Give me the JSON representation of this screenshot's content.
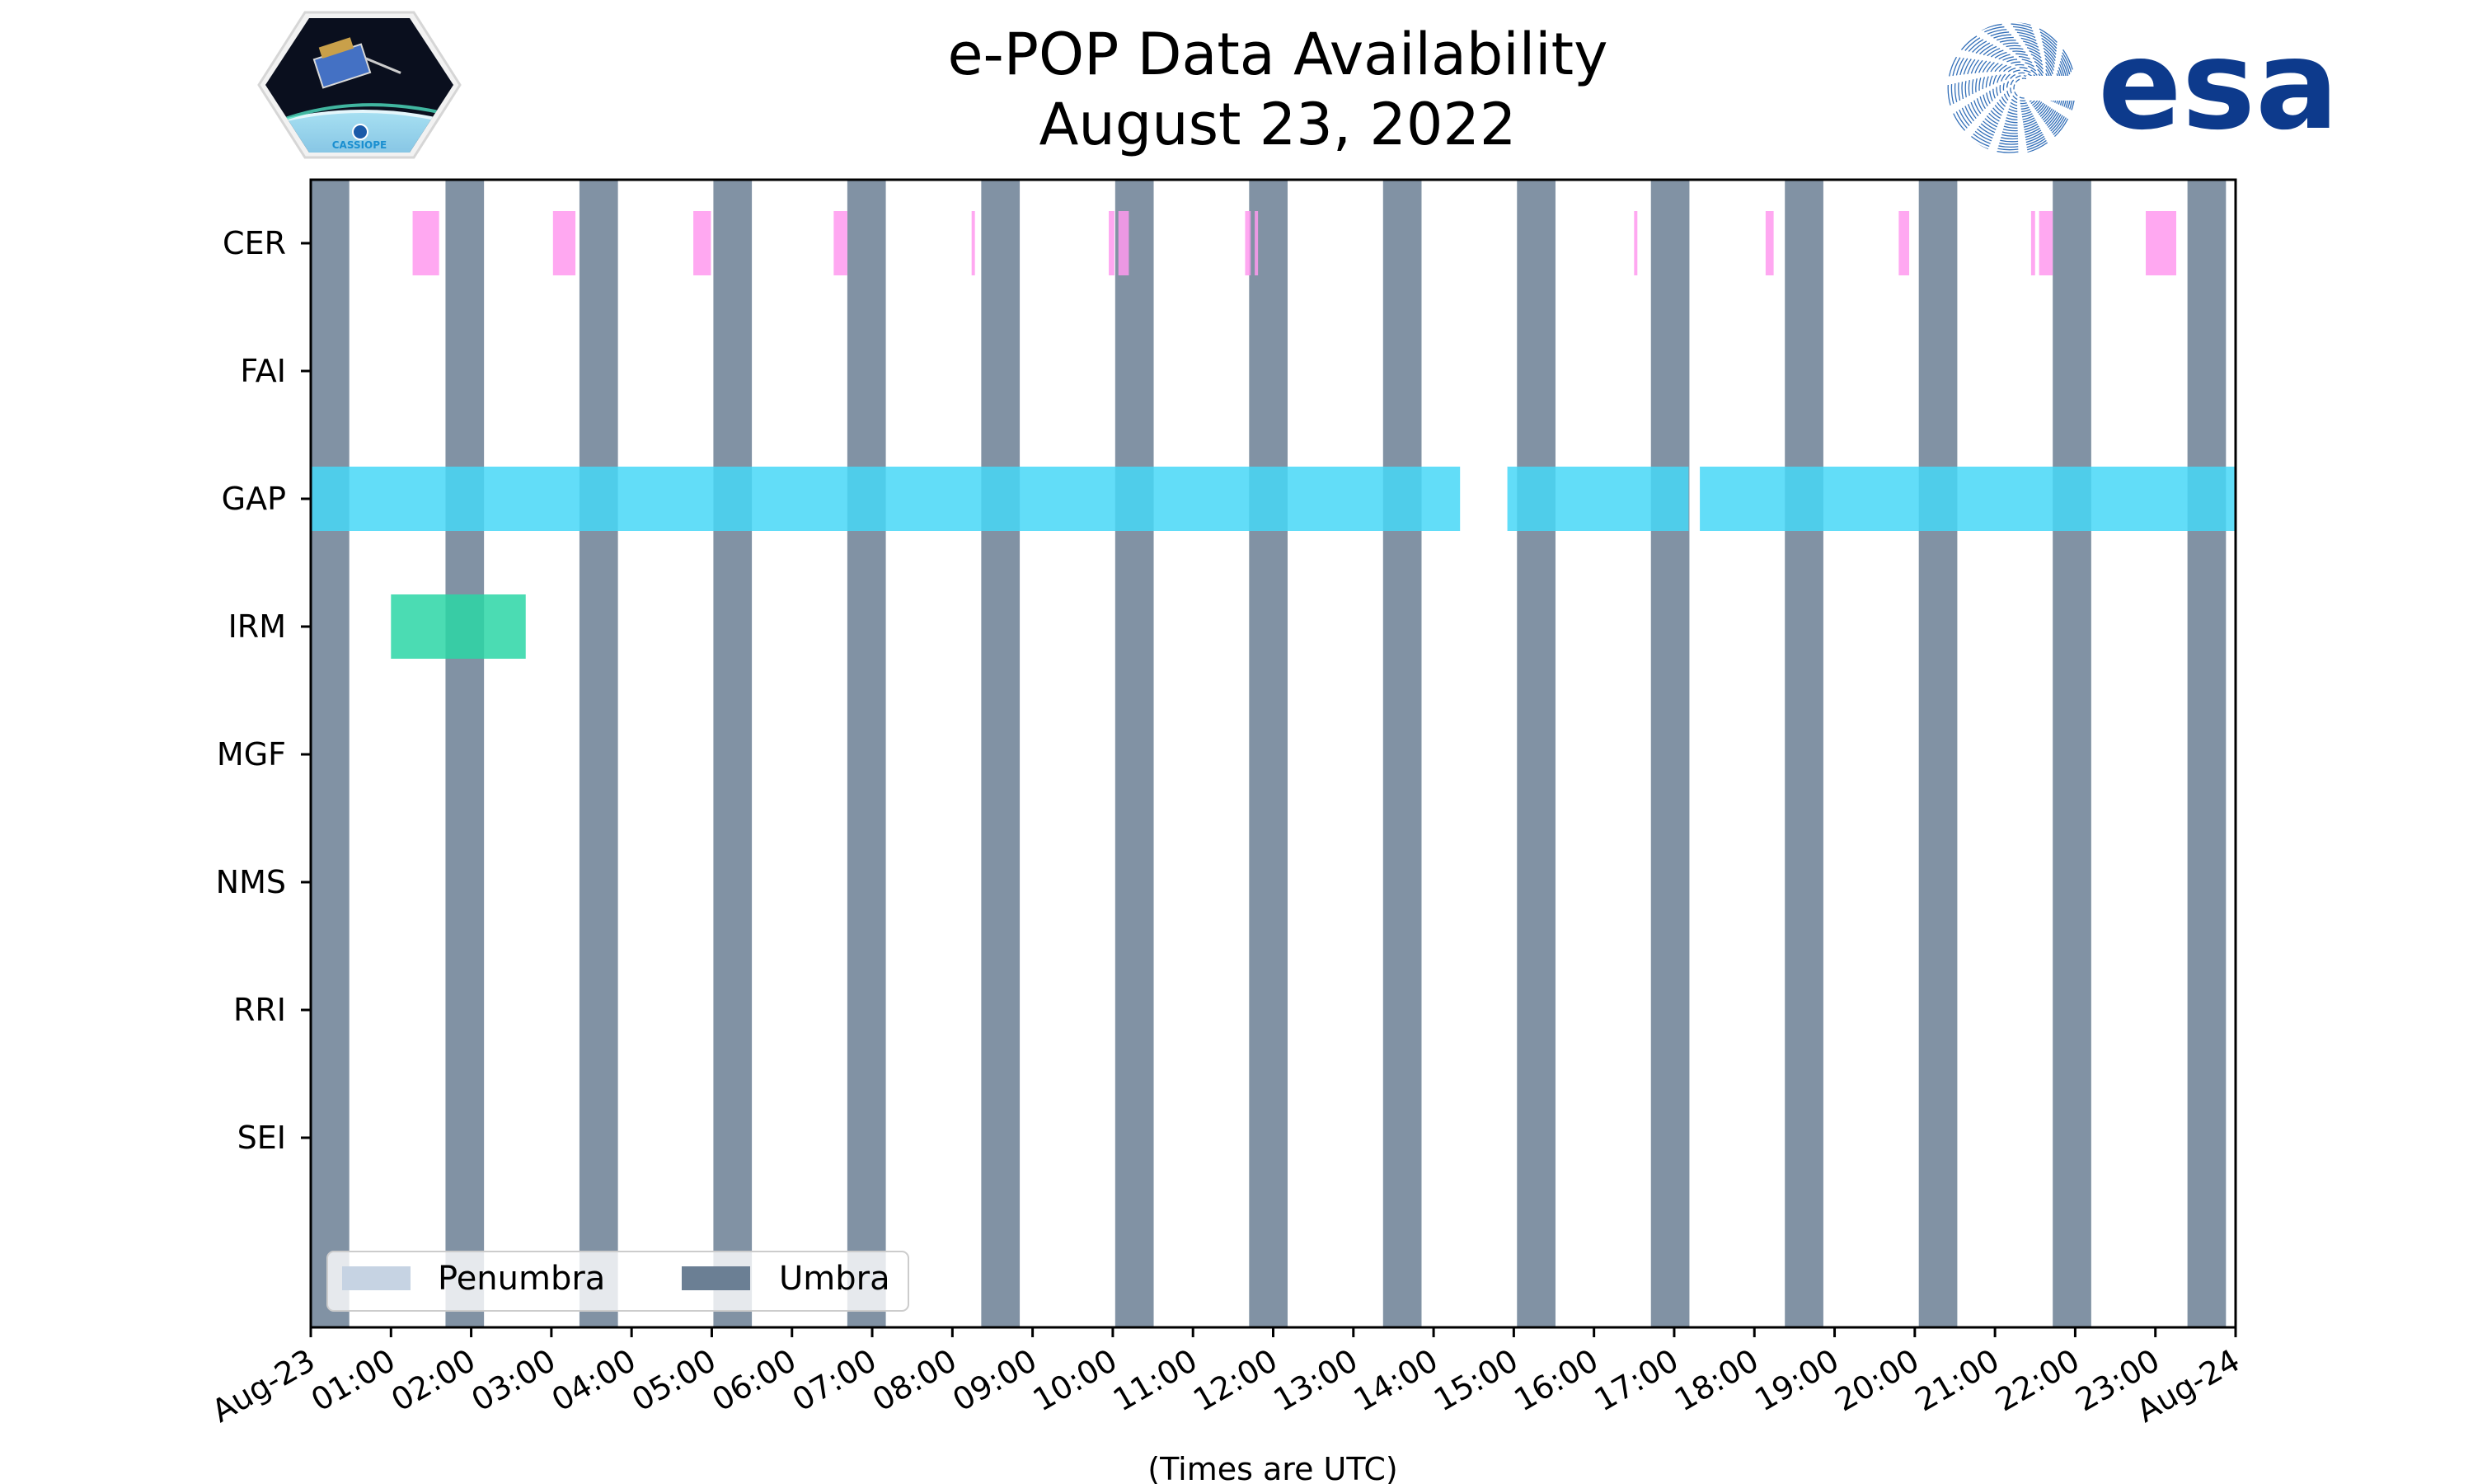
{
  "header": {
    "title": "e-POP Data Availability",
    "subtitle": "August 23, 2022"
  },
  "logos": {
    "left": {
      "icon": "cassiope-mission-patch",
      "text": "CASSIOPE"
    },
    "right": {
      "icon": "esa-logo",
      "text": "esa"
    }
  },
  "chart_data": {
    "type": "timeline",
    "title": "e-POP Data Availability",
    "subtitle": "August 23, 2022",
    "xlabel": "(Times are UTC)",
    "xlim_hours": [
      0,
      24
    ],
    "x_tick_hours": [
      0,
      1,
      2,
      3,
      4,
      5,
      6,
      7,
      8,
      9,
      10,
      11,
      12,
      13,
      14,
      15,
      16,
      17,
      18,
      19,
      20,
      21,
      22,
      23,
      24
    ],
    "x_tick_labels": [
      "Aug-23",
      "01:00",
      "02:00",
      "03:00",
      "04:00",
      "05:00",
      "06:00",
      "07:00",
      "08:00",
      "09:00",
      "10:00",
      "11:00",
      "12:00",
      "13:00",
      "14:00",
      "15:00",
      "16:00",
      "17:00",
      "18:00",
      "19:00",
      "20:00",
      "21:00",
      "22:00",
      "23:00",
      "Aug-24"
    ],
    "instruments": [
      "CER",
      "FAI",
      "GAP",
      "IRM",
      "MGF",
      "NMS",
      "RRI",
      "SEI"
    ],
    "umbra_intervals_hours": [
      [
        0.0,
        0.48
      ],
      [
        1.68,
        2.16
      ],
      [
        3.35,
        3.83
      ],
      [
        5.02,
        5.5
      ],
      [
        6.69,
        7.17
      ],
      [
        8.36,
        8.84
      ],
      [
        10.03,
        10.51
      ],
      [
        11.7,
        12.18
      ],
      [
        13.37,
        13.85
      ],
      [
        15.04,
        15.52
      ],
      [
        16.71,
        17.19
      ],
      [
        18.38,
        18.86
      ],
      [
        20.05,
        20.53
      ],
      [
        21.72,
        22.2
      ],
      [
        23.4,
        23.88
      ]
    ],
    "penumbra_intervals_hours": [],
    "series": [
      {
        "name": "CER",
        "color": "#ff99ee",
        "intervals_hours": [
          [
            1.27,
            1.6
          ],
          [
            3.02,
            3.3
          ],
          [
            4.77,
            4.99
          ],
          [
            6.52,
            6.69
          ],
          [
            8.24,
            8.28
          ],
          [
            9.95,
            10.02
          ],
          [
            10.07,
            10.2
          ],
          [
            11.65,
            11.72
          ],
          [
            11.77,
            11.79
          ],
          [
            16.5,
            16.54
          ],
          [
            18.14,
            18.24
          ],
          [
            19.8,
            19.93
          ],
          [
            21.45,
            21.5
          ],
          [
            21.55,
            21.72
          ],
          [
            22.88,
            23.26
          ]
        ]
      },
      {
        "name": "FAI",
        "color": "#ff99ee",
        "intervals_hours": []
      },
      {
        "name": "GAP",
        "color": "#47d7f7",
        "intervals_hours": [
          [
            0.0,
            14.33
          ],
          [
            14.92,
            17.18
          ],
          [
            17.32,
            24.0
          ]
        ]
      },
      {
        "name": "IRM",
        "color": "#2cd6a6",
        "intervals_hours": [
          [
            1.0,
            2.68
          ]
        ]
      },
      {
        "name": "MGF",
        "color": "#2cd6a6",
        "intervals_hours": []
      },
      {
        "name": "NMS",
        "color": "#2cd6a6",
        "intervals_hours": []
      },
      {
        "name": "RRI",
        "color": "#2cd6a6",
        "intervals_hours": []
      },
      {
        "name": "SEI",
        "color": "#2cd6a6",
        "intervals_hours": []
      }
    ],
    "umbra_color": "#6b7f94",
    "penumbra_color": "#c6d3e3",
    "legend": {
      "placement": "lower-left",
      "entries": [
        {
          "label": "Penumbra",
          "color": "#c6d3e3"
        },
        {
          "label": "Umbra",
          "color": "#6b7f94"
        }
      ]
    },
    "grid": false
  }
}
